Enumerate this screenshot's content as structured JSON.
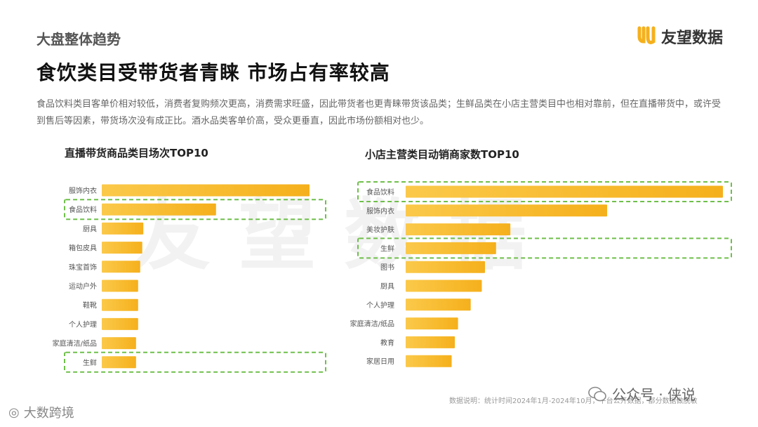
{
  "header": {
    "section": "大盘整体趋势",
    "brand": "友望数据",
    "title": "食饮类目受带货者青睐  市场占有率较高",
    "description": "食品饮料类目客单价相对较低，消费者复购频次更高，消费需求旺盛，因此带货者也更青睐带货该品类；生鲜品类在小店主营类目中也相对靠前，但在直播带货中，或许受到售后等因素，带货场次没有成正比。酒水品类客单价高，受众更垂直，因此市场份额相对也少。"
  },
  "colors": {
    "bar_start": "#fbc94a",
    "bar_end": "#f5b01c",
    "highlight": "#6fbf4a"
  },
  "chart_data": [
    {
      "type": "bar",
      "orientation": "horizontal",
      "title": "直播带货商品类目场次TOP10",
      "categories": [
        "服饰内衣",
        "食品饮料",
        "厨具",
        "箱包皮具",
        "珠宝首饰",
        "运动户外",
        "鞋靴",
        "个人护理",
        "家庭清洁/纸品",
        "生鲜"
      ],
      "values": [
        100,
        55,
        20,
        19.5,
        18.5,
        17.5,
        17.5,
        17.5,
        16.5,
        16.5
      ],
      "highlighted": [
        "食品饮料",
        "生鲜"
      ]
    },
    {
      "type": "bar",
      "orientation": "horizontal",
      "title": "小店主营类目动销商家数TOP10",
      "categories": [
        "食品饮料",
        "服饰内衣",
        "美妆护肤",
        "生鲜",
        "图书",
        "厨具",
        "个人护理",
        "家庭清洁/纸品",
        "教育",
        "家居日用"
      ],
      "values": [
        100,
        63.5,
        33,
        28.5,
        25,
        24,
        20.5,
        16.5,
        15.5,
        14.5
      ],
      "highlighted": [
        "食品饮料",
        "生鲜"
      ]
    }
  ],
  "footer": {
    "note": "数据说明：统计时间2024年1月-2024年10月，平台公开数据，部分数据做脱敏",
    "wechat": "公众号 · 侠说",
    "corner_brand": "大数跨境"
  }
}
